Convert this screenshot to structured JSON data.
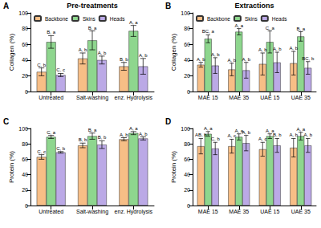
{
  "chart_data": [
    {
      "type": "bar",
      "panel": "A",
      "title": "Pre-treatments",
      "y_label": "Collagen (%)",
      "categories": [
        "Untreated",
        "Salt-washing",
        "enz. Hydrolysis"
      ],
      "series": [
        {
          "name": "Backbone",
          "color": "#F7BE86",
          "values": [
            25,
            42,
            32
          ],
          "errors": [
            5,
            7,
            5
          ],
          "annotations": [
            "C, b",
            "A, b",
            "B, b"
          ]
        },
        {
          "name": "Skins",
          "color": "#8ED68E",
          "values": [
            63,
            65,
            77
          ],
          "errors": [
            8,
            12,
            7
          ],
          "annotations": [
            "B, a",
            "B, a",
            "A, a"
          ]
        },
        {
          "name": "Heads",
          "color": "#BBA9E6",
          "values": [
            21,
            40,
            32
          ],
          "errors": [
            2,
            5,
            10
          ],
          "annotations": [
            "C, c",
            "A, b",
            "A, b"
          ]
        }
      ],
      "ylim": [
        0,
        100
      ],
      "yticks": [
        0,
        20,
        40,
        60,
        80,
        100
      ],
      "grid": false,
      "legend": "upper left"
    },
    {
      "type": "bar",
      "panel": "B",
      "title": "Extractions",
      "y_label": "Collagen (%)",
      "categories": [
        "MAE 15",
        "MAE 35",
        "UAE 15",
        "UAE 35"
      ],
      "series": [
        {
          "name": "Backbone",
          "color": "#F7BE86",
          "values": [
            34,
            28,
            35,
            36
          ],
          "errors": [
            3,
            8,
            14,
            15
          ],
          "annotations": [
            "A, b",
            "A, b",
            "A, b",
            "A, b"
          ]
        },
        {
          "name": "Skins",
          "color": "#8ED68E",
          "values": [
            67,
            76,
            63,
            70
          ],
          "errors": [
            5,
            4,
            14,
            6
          ],
          "annotations": [
            "BC, a",
            "A, a",
            "C, a",
            "B, a"
          ]
        },
        {
          "name": "Heads",
          "color": "#BBA9E6",
          "values": [
            33,
            27,
            37,
            30
          ],
          "errors": [
            10,
            10,
            13,
            8
          ],
          "annotations": [
            "A, b",
            "A, b",
            "A, b",
            "BC, b"
          ]
        }
      ],
      "ylim": [
        0,
        100
      ],
      "yticks": [
        0,
        20,
        40,
        60,
        80,
        100
      ],
      "grid": false,
      "legend": "upper left"
    },
    {
      "type": "bar",
      "panel": "C",
      "y_label": "Protein (%)",
      "categories": [
        "Untreated",
        "Salt-washing",
        "enz. Hydrolysis"
      ],
      "series": [
        {
          "name": "Backbone",
          "color": "#F7BE86",
          "values": [
            63,
            78,
            86
          ],
          "errors": [
            3,
            3,
            2
          ],
          "annotations": [
            "C, c",
            "B, b",
            "A, b"
          ]
        },
        {
          "name": "Skins",
          "color": "#8ED68E",
          "values": [
            89,
            90,
            94
          ],
          "errors": [
            2,
            4,
            2
          ],
          "annotations": [
            "C, a",
            "B, a",
            "A, a"
          ]
        },
        {
          "name": "Heads",
          "color": "#BBA9E6",
          "values": [
            69,
            79,
            87
          ],
          "errors": [
            1,
            5,
            2
          ],
          "annotations": [
            "C, b",
            "B, b",
            "A, b"
          ]
        }
      ],
      "ylim": [
        0,
        100
      ],
      "yticks": [
        0,
        20,
        40,
        60,
        80,
        100
      ],
      "grid": false
    },
    {
      "type": "bar",
      "panel": "D",
      "y_label": "Protein (%)",
      "categories": [
        "MAE 15",
        "MAE 35",
        "UAE 15",
        "UAE 35"
      ],
      "series": [
        {
          "name": "Backbone",
          "color": "#F7BE86",
          "values": [
            77,
            77,
            73,
            75
          ],
          "errors": [
            10,
            9,
            9,
            12
          ],
          "annotations": [
            "AB, b",
            "A, c",
            "A, c",
            "A, b"
          ]
        },
        {
          "name": "Skins",
          "color": "#8ED68E",
          "values": [
            93,
            89,
            90,
            90
          ],
          "errors": [
            3,
            4,
            3,
            5
          ],
          "annotations": [
            "A, a",
            "A, a",
            "A, a",
            "A, a"
          ]
        },
        {
          "name": "Heads",
          "color": "#BBA9E6",
          "values": [
            74,
            81,
            78,
            78
          ],
          "errors": [
            8,
            10,
            9,
            9
          ],
          "annotations": [
            "C, b",
            "A, b",
            "B, b",
            "A, b"
          ]
        }
      ],
      "ylim": [
        0,
        100
      ],
      "yticks": [
        0,
        20,
        40,
        60,
        80,
        100
      ],
      "grid": false
    }
  ]
}
